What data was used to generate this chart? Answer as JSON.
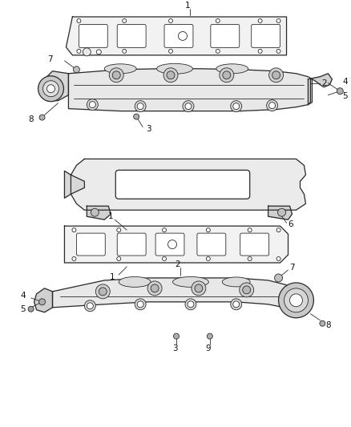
{
  "bg_color": "#ffffff",
  "line_color": "#2a2a2a",
  "label_fontsize": 7.5,
  "label_color": "#111111",
  "figsize": [
    4.38,
    5.33
  ],
  "dpi": 100
}
